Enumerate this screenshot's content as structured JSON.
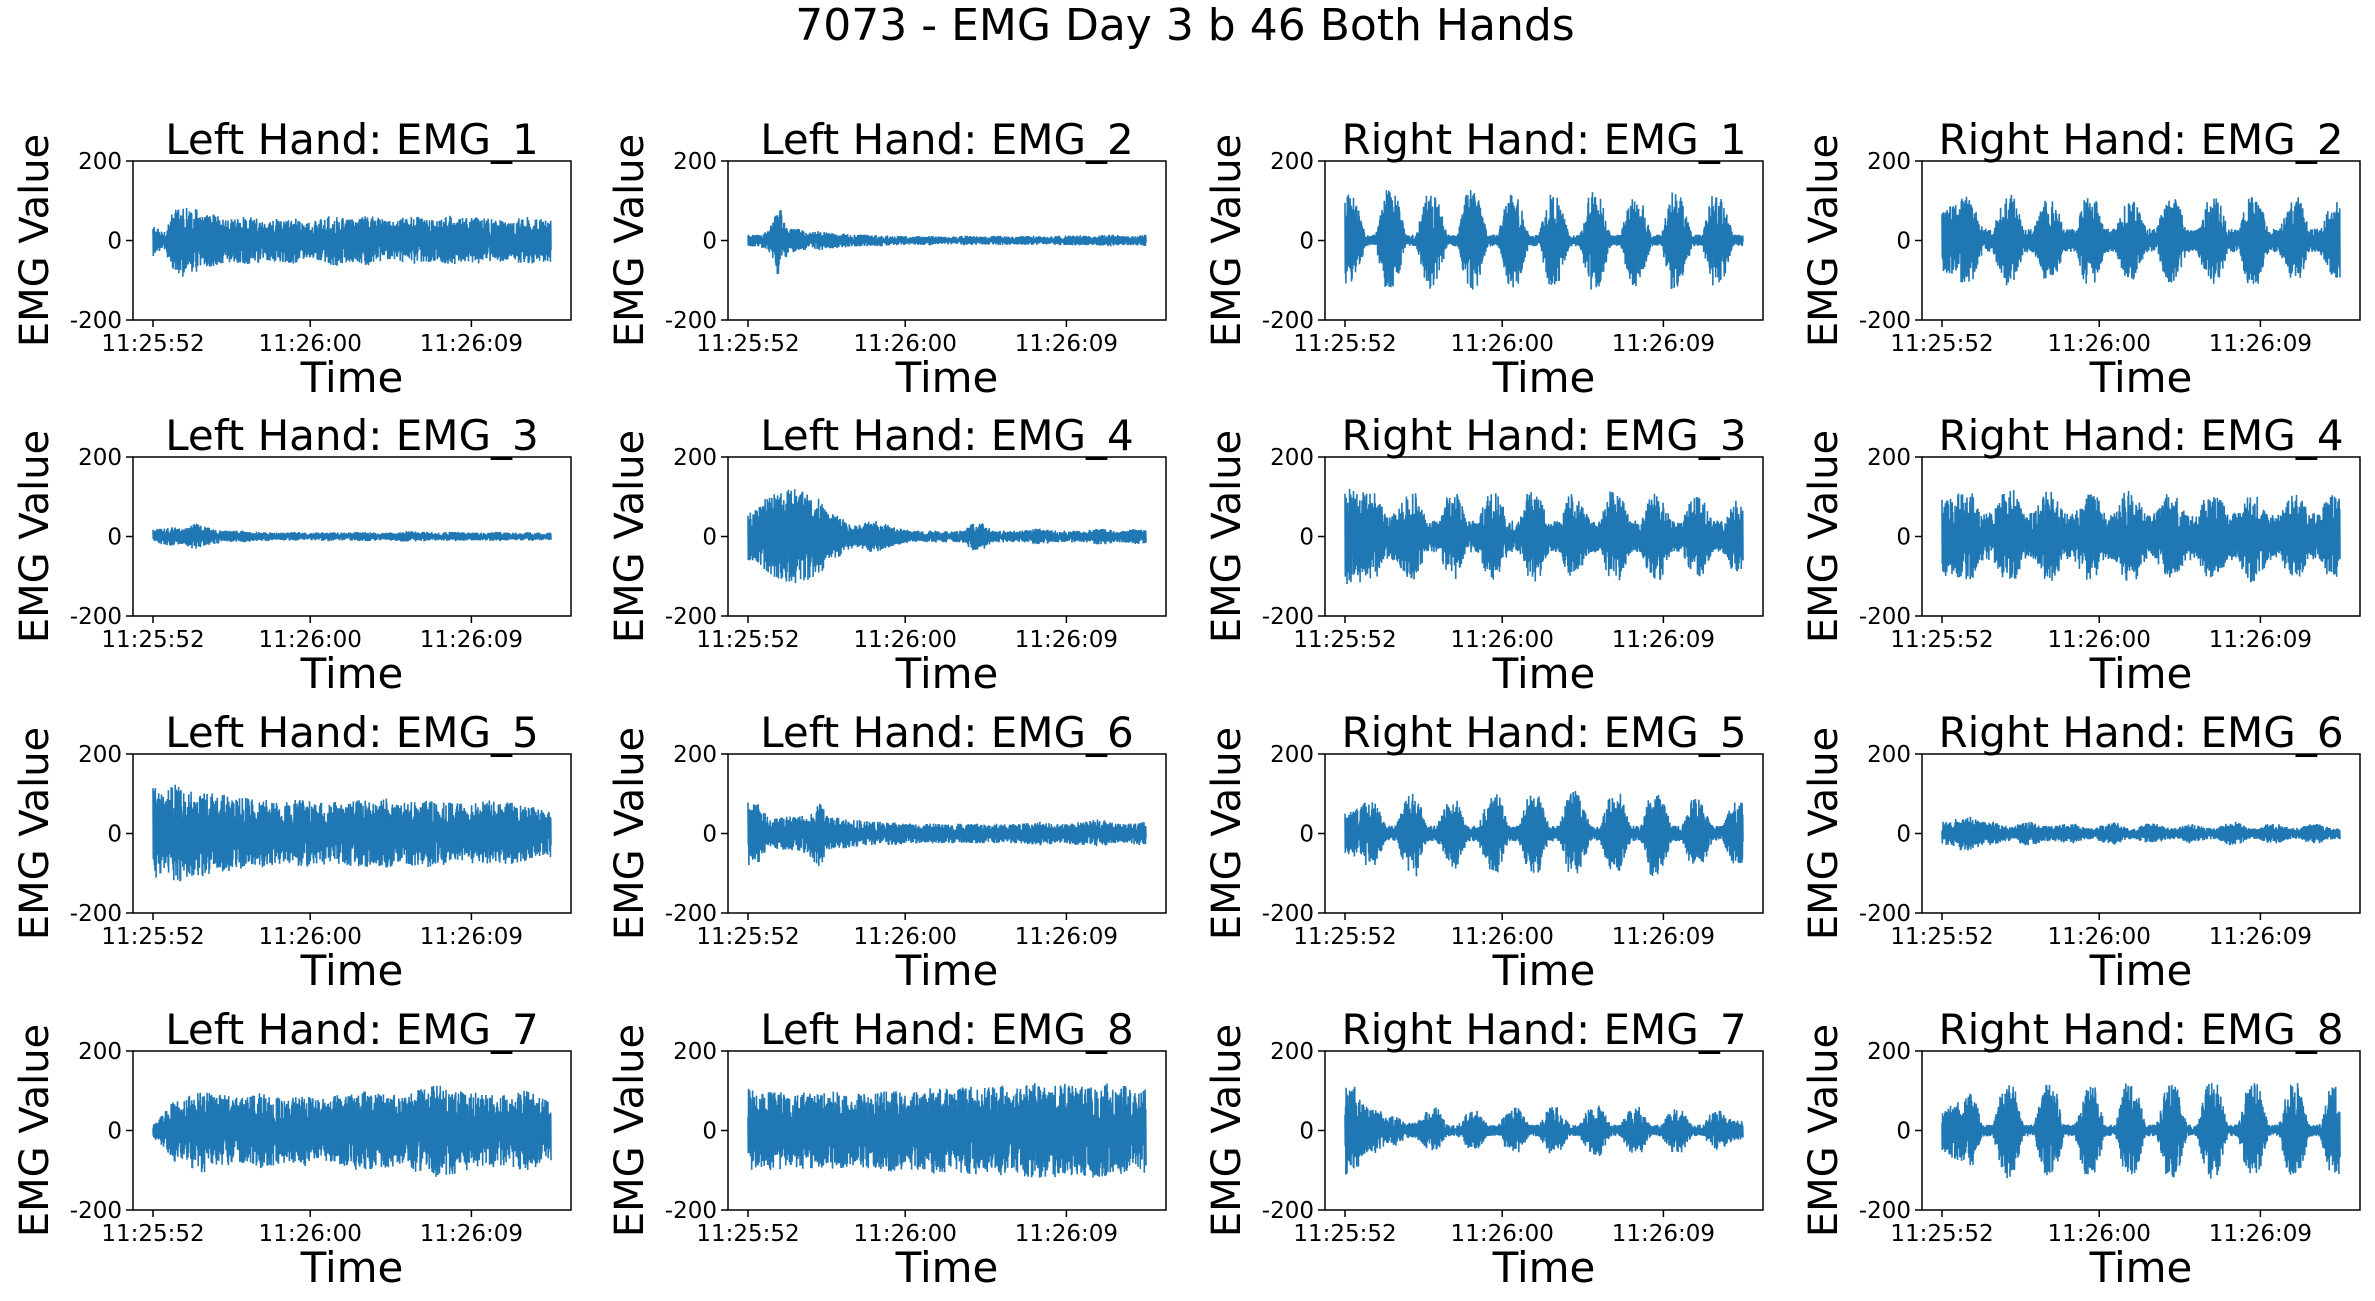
{
  "figure": {
    "title": "7073 - EMG Day 3 b 46 Both Hands",
    "line_color": "#1f77b4",
    "axis_color": "#000000"
  },
  "chart_data": [
    {
      "type": "line",
      "title": "Left Hand:  EMG_1",
      "xlabel": "Time",
      "ylabel": "EMG Value",
      "ylim": [
        -200,
        200
      ],
      "yticks": [
        -200,
        0,
        200
      ],
      "xticks": [
        "11:25:52",
        "11:26:00",
        "11:26:09"
      ],
      "grid": false,
      "series": [
        {
          "values": [
            -40,
            20,
            75,
            95,
            -85,
            65,
            -70,
            55,
            -55,
            60,
            -60,
            50,
            -55,
            55,
            -60,
            45,
            -50,
            60,
            -65,
            55,
            -55,
            65,
            -60,
            50,
            -55,
            60,
            -60,
            55,
            -50,
            65,
            -55,
            60,
            -60,
            55,
            -55,
            45,
            -60,
            60,
            -55,
            55
          ]
        }
      ]
    },
    {
      "type": "line",
      "title": "Left Hand:  EMG_2",
      "xlabel": "Time",
      "ylabel": "EMG Value",
      "ylim": [
        -200,
        200
      ],
      "yticks": [
        -200,
        0,
        200
      ],
      "xticks": [
        "11:25:52",
        "11:26:00",
        "11:26:09"
      ],
      "grid": false,
      "series": [
        {
          "values": [
            -15,
            15,
            25,
            -95,
            30,
            -30,
            20,
            -25,
            20,
            -20,
            15,
            -15,
            15,
            -15,
            12,
            -12,
            10,
            -12,
            12,
            -10,
            10,
            -12,
            12,
            -10,
            12,
            -12,
            10,
            -12,
            12,
            -10,
            12,
            -12,
            15,
            -12,
            12,
            -15,
            15,
            -12,
            12,
            -15
          ]
        }
      ]
    },
    {
      "type": "line",
      "title": "Right Hand:  EMG_1",
      "xlabel": "Time",
      "ylabel": "EMG Value",
      "ylim": [
        -200,
        200
      ],
      "yticks": [
        -200,
        0,
        200
      ],
      "xticks": [
        "11:25:52",
        "11:26:00",
        "11:26:09"
      ],
      "grid": false,
      "series": [
        {
          "values": [
            120,
            -110,
            15,
            -15,
            130,
            -120,
            15,
            -15,
            125,
            -115,
            15,
            -15,
            130,
            -120,
            15,
            -15,
            125,
            -110,
            15,
            -15,
            120,
            -110,
            15,
            -15,
            125,
            -115,
            15,
            -15,
            120,
            -110,
            15,
            -15,
            125,
            -110,
            15,
            -15,
            120,
            -110,
            15,
            -15
          ]
        }
      ]
    },
    {
      "type": "line",
      "title": "Right Hand:  EMG_2",
      "xlabel": "Time",
      "ylabel": "EMG Value",
      "ylim": [
        -200,
        200
      ],
      "yticks": [
        -200,
        0,
        200
      ],
      "xticks": [
        "11:25:52",
        "11:26:00",
        "11:26:09"
      ],
      "grid": false,
      "series": [
        {
          "values": [
            80,
            -90,
            120,
            -100,
            30,
            -30,
            110,
            -120,
            30,
            -30,
            100,
            -110,
            30,
            -30,
            110,
            -110,
            30,
            -30,
            100,
            -100,
            30,
            -30,
            110,
            -110,
            30,
            -30,
            100,
            -120,
            30,
            -30,
            110,
            -110,
            30,
            -30,
            100,
            -110,
            30,
            -30,
            90,
            -100
          ]
        }
      ]
    },
    {
      "type": "line",
      "title": "Left Hand:  EMG_3",
      "xlabel": "Time",
      "ylabel": "EMG Value",
      "ylim": [
        -200,
        200
      ],
      "yticks": [
        -200,
        0,
        200
      ],
      "xticks": [
        "11:25:52",
        "11:26:00",
        "11:26:09"
      ],
      "grid": false,
      "series": [
        {
          "values": [
            -20,
            20,
            -25,
            20,
            -35,
            25,
            -20,
            15,
            -15,
            15,
            -12,
            12,
            -10,
            10,
            -12,
            10,
            -10,
            12,
            -10,
            10,
            -12,
            12,
            -10,
            10,
            -12,
            15,
            -12,
            12,
            -10,
            12,
            -12,
            10,
            -10,
            12,
            -12,
            10,
            -10,
            12,
            -10,
            10
          ]
        }
      ]
    },
    {
      "type": "line",
      "title": "Left Hand:  EMG_4",
      "xlabel": "Time",
      "ylabel": "EMG Value",
      "ylim": [
        -200,
        200
      ],
      "yticks": [
        -200,
        0,
        200
      ],
      "xticks": [
        "11:25:52",
        "11:26:00",
        "11:26:09"
      ],
      "grid": false,
      "series": [
        {
          "values": [
            60,
            -70,
            110,
            -110,
            120,
            -120,
            115,
            -100,
            60,
            -50,
            30,
            -30,
            40,
            -40,
            25,
            -20,
            15,
            -15,
            15,
            -15,
            15,
            -15,
            35,
            -35,
            15,
            -15,
            15,
            -15,
            20,
            -20,
            15,
            -15,
            15,
            -15,
            20,
            -20,
            15,
            -15,
            20,
            -20
          ]
        }
      ]
    },
    {
      "type": "line",
      "title": "Right Hand:  EMG_3",
      "xlabel": "Time",
      "ylabel": "EMG Value",
      "ylim": [
        -200,
        200
      ],
      "yticks": [
        -200,
        0,
        200
      ],
      "xticks": [
        "11:25:52",
        "11:26:00",
        "11:26:09"
      ],
      "grid": false,
      "series": [
        {
          "values": [
            120,
            -120,
            110,
            -110,
            60,
            -60,
            110,
            -110,
            40,
            -40,
            100,
            -110,
            40,
            -40,
            110,
            -110,
            40,
            -40,
            120,
            -110,
            40,
            -40,
            110,
            -100,
            40,
            -40,
            120,
            -110,
            40,
            -40,
            110,
            -110,
            40,
            -40,
            100,
            -100,
            40,
            -40,
            90,
            -90
          ]
        }
      ]
    },
    {
      "type": "line",
      "title": "Right Hand:  EMG_4",
      "xlabel": "Time",
      "ylabel": "EMG Value",
      "ylim": [
        -200,
        200
      ],
      "yticks": [
        -200,
        0,
        200
      ],
      "xticks": [
        "11:25:52",
        "11:26:00",
        "11:26:09"
      ],
      "grid": false,
      "series": [
        {
          "values": [
            100,
            -100,
            115,
            -110,
            60,
            -60,
            110,
            -120,
            60,
            -60,
            120,
            -110,
            60,
            -60,
            110,
            -110,
            60,
            -60,
            120,
            -110,
            60,
            -60,
            110,
            -100,
            60,
            -60,
            110,
            -110,
            60,
            -60,
            120,
            -110,
            60,
            -60,
            100,
            -110,
            60,
            -60,
            110,
            -100
          ]
        }
      ]
    },
    {
      "type": "line",
      "title": "Left Hand:  EMG_5",
      "xlabel": "Time",
      "ylabel": "EMG Value",
      "ylim": [
        -200,
        200
      ],
      "yticks": [
        -200,
        0,
        200
      ],
      "xticks": [
        "11:25:52",
        "11:26:00",
        "11:26:09"
      ],
      "grid": false,
      "series": [
        {
          "values": [
            -120,
            100,
            125,
            -120,
            110,
            -110,
            100,
            -100,
            90,
            -90,
            85,
            -85,
            80,
            -80,
            85,
            -85,
            75,
            -80,
            80,
            -80,
            85,
            -85,
            80,
            -90,
            75,
            -80,
            85,
            -85,
            80,
            -80,
            75,
            -75,
            80,
            -85,
            75,
            -80,
            70,
            -70,
            60,
            -60
          ]
        }
      ]
    },
    {
      "type": "line",
      "title": "Left Hand:  EMG_6",
      "xlabel": "Time",
      "ylabel": "EMG Value",
      "ylim": [
        -200,
        200
      ],
      "yticks": [
        -200,
        0,
        200
      ],
      "xticks": [
        "11:25:52",
        "11:26:00",
        "11:26:09"
      ],
      "grid": false,
      "series": [
        {
          "values": [
            -80,
            75,
            -40,
            40,
            45,
            -45,
            55,
            -90,
            40,
            -40,
            35,
            -35,
            30,
            -30,
            30,
            -30,
            25,
            -25,
            25,
            -25,
            25,
            -25,
            25,
            -25,
            25,
            -25,
            25,
            -25,
            30,
            -30,
            25,
            -25,
            30,
            -30,
            35,
            -35,
            25,
            -25,
            30,
            -30
          ]
        }
      ]
    },
    {
      "type": "line",
      "title": "Right Hand:  EMG_5",
      "xlabel": "Time",
      "ylabel": "EMG Value",
      "ylim": [
        -200,
        200
      ],
      "yticks": [
        -200,
        0,
        200
      ],
      "xticks": [
        "11:25:52",
        "11:26:00",
        "11:26:09"
      ],
      "grid": false,
      "series": [
        {
          "values": [
            50,
            -60,
            80,
            -80,
            20,
            -20,
            90,
            -110,
            20,
            -20,
            80,
            -90,
            20,
            -20,
            90,
            -110,
            20,
            -20,
            100,
            -100,
            20,
            -20,
            110,
            -110,
            20,
            -20,
            100,
            -100,
            20,
            -20,
            110,
            -100,
            20,
            -20,
            90,
            -90,
            20,
            -20,
            80,
            -80
          ]
        }
      ]
    },
    {
      "type": "line",
      "title": "Right Hand:  EMG_6",
      "xlabel": "Time",
      "ylabel": "EMG Value",
      "ylim": [
        -200,
        200
      ],
      "yticks": [
        -200,
        0,
        200
      ],
      "xticks": [
        "11:25:52",
        "11:26:00",
        "11:26:09"
      ],
      "grid": false,
      "series": [
        {
          "values": [
            30,
            -30,
            50,
            -40,
            30,
            -30,
            20,
            -20,
            30,
            -30,
            20,
            -20,
            25,
            -25,
            15,
            -15,
            25,
            -30,
            15,
            -15,
            25,
            -25,
            15,
            -15,
            25,
            -25,
            15,
            -15,
            30,
            -30,
            15,
            -15,
            25,
            -25,
            15,
            -15,
            25,
            -25,
            15,
            -15
          ]
        }
      ]
    },
    {
      "type": "line",
      "title": "Left Hand:  EMG_7",
      "xlabel": "Time",
      "ylabel": "EMG Value",
      "ylim": [
        -200,
        200
      ],
      "yticks": [
        -200,
        0,
        200
      ],
      "xticks": [
        "11:25:52",
        "11:26:00",
        "11:26:09"
      ],
      "grid": false,
      "series": [
        {
          "values": [
            -20,
            40,
            80,
            -80,
            100,
            -110,
            90,
            -90,
            85,
            -85,
            90,
            -100,
            85,
            -85,
            90,
            -90,
            80,
            -80,
            90,
            -90,
            100,
            -100,
            95,
            -95,
            90,
            -90,
            110,
            -110,
            120,
            -120,
            100,
            -100,
            95,
            -95,
            90,
            -90,
            100,
            -100,
            85,
            -85
          ]
        }
      ]
    },
    {
      "type": "line",
      "title": "Left Hand:  EMG_8",
      "xlabel": "Time",
      "ylabel": "EMG Value",
      "ylim": [
        -200,
        200
      ],
      "yticks": [
        -200,
        0,
        200
      ],
      "xticks": [
        "11:25:52",
        "11:26:00",
        "11:26:09"
      ],
      "grid": false,
      "series": [
        {
          "values": [
            -110,
            90,
            100,
            -100,
            90,
            -100,
            95,
            -95,
            100,
            -100,
            95,
            -95,
            100,
            -100,
            105,
            -105,
            100,
            -100,
            110,
            -110,
            100,
            -110,
            110,
            -110,
            115,
            -115,
            110,
            -115,
            120,
            -120,
            125,
            -120,
            115,
            -115,
            120,
            -120,
            110,
            -115,
            100,
            -110
          ]
        }
      ]
    },
    {
      "type": "line",
      "title": "Right Hand:  EMG_7",
      "xlabel": "Time",
      "ylabel": "EMG Value",
      "ylim": [
        -200,
        200
      ],
      "yticks": [
        -200,
        0,
        200
      ],
      "xticks": [
        "11:25:52",
        "11:26:00",
        "11:26:09"
      ],
      "grid": false,
      "series": [
        {
          "values": [
            115,
            -110,
            60,
            -60,
            40,
            -40,
            20,
            -20,
            50,
            -60,
            15,
            -15,
            45,
            -50,
            15,
            -15,
            55,
            -60,
            15,
            -15,
            60,
            -60,
            15,
            -15,
            65,
            -65,
            15,
            -15,
            60,
            -60,
            15,
            -15,
            55,
            -55,
            15,
            -15,
            50,
            -50,
            25,
            -25
          ]
        }
      ]
    },
    {
      "type": "line",
      "title": "Right Hand:  EMG_8",
      "xlabel": "Time",
      "ylabel": "EMG Value",
      "ylim": [
        -200,
        200
      ],
      "yticks": [
        -200,
        0,
        200
      ],
      "xticks": [
        "11:25:52",
        "11:26:00",
        "11:26:09"
      ],
      "grid": false,
      "series": [
        {
          "values": [
            50,
            -70,
            80,
            -100,
            15,
            -15,
            120,
            -120,
            15,
            -15,
            115,
            -120,
            15,
            -15,
            120,
            -110,
            15,
            -15,
            125,
            -110,
            15,
            -15,
            120,
            -120,
            15,
            -15,
            125,
            -120,
            15,
            -15,
            120,
            -120,
            15,
            -15,
            120,
            -120,
            15,
            -15,
            110,
            -110
          ]
        }
      ]
    }
  ]
}
